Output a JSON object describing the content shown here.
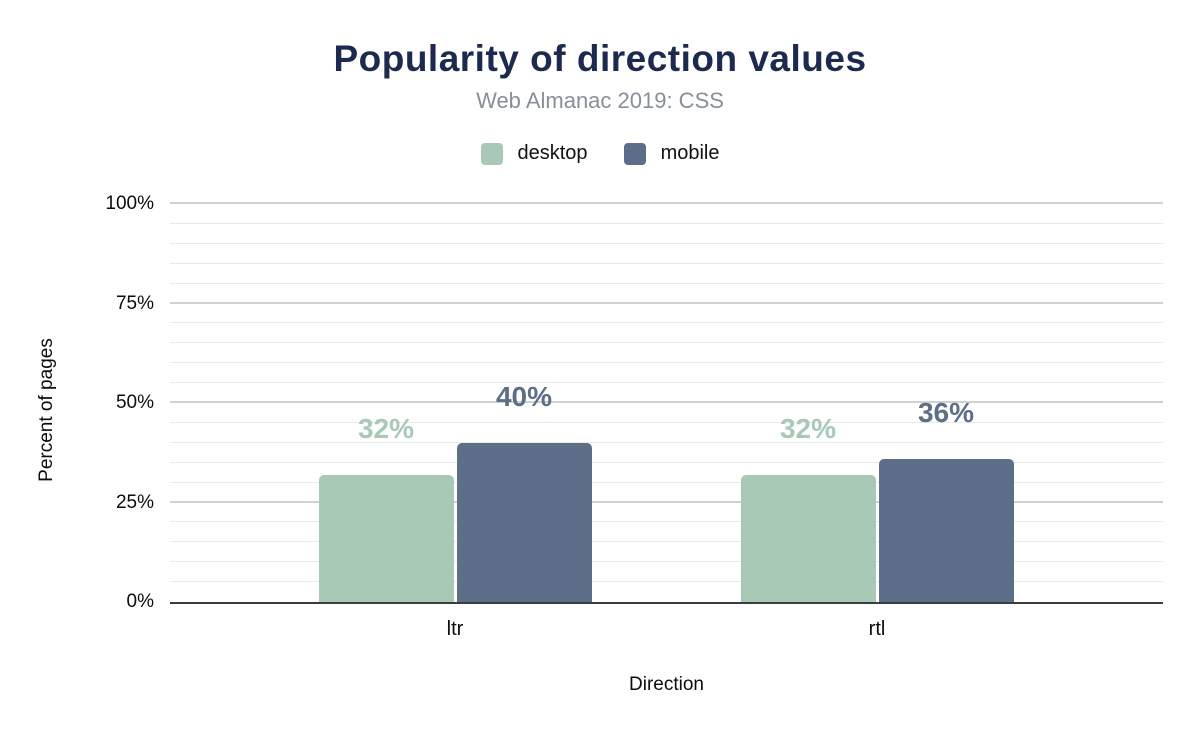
{
  "header": {
    "title": "Popularity of direction values",
    "subtitle": "Web Almanac 2019: CSS"
  },
  "legend": {
    "items": [
      {
        "label": "desktop",
        "color": "#a7c9b5"
      },
      {
        "label": "mobile",
        "color": "#5c6e88"
      }
    ]
  },
  "axes": {
    "ylabel": "Percent of pages",
    "xlabel": "Direction"
  },
  "chart_data": {
    "type": "bar",
    "title": "Popularity of direction values",
    "subtitle": "Web Almanac 2019: CSS",
    "categories": [
      "ltr",
      "rtl"
    ],
    "series": [
      {
        "name": "desktop",
        "color": "#a7c9b5",
        "values": [
          32,
          32
        ],
        "labels": [
          "32%",
          "32%"
        ]
      },
      {
        "name": "mobile",
        "color": "#5c6e88",
        "values": [
          40,
          36
        ],
        "labels": [
          "40%",
          "36%"
        ]
      }
    ],
    "xlabel": "Direction",
    "ylabel": "Percent of pages",
    "ylim": [
      0,
      100
    ],
    "yticks": [
      0,
      25,
      50,
      75,
      100
    ],
    "ytick_labels": [
      "0%",
      "25%",
      "50%",
      "75%",
      "100%"
    ],
    "minor_grid_step": 5,
    "major_grid_step": 25,
    "grid": true,
    "legend_position": "top",
    "colors": {
      "title": "#1b2a4e",
      "subtitle": "#878f9a",
      "axis_line": "#3c3c3c",
      "major_grid": "#ced2d1",
      "minor_grid": "#e9eaea"
    }
  }
}
